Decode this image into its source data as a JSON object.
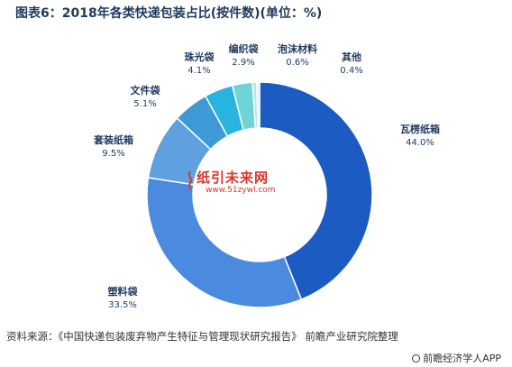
{
  "title": "图表6：2018年各类快递包装占比(按件数)(单位：%)",
  "chart_data": {
    "type": "pie",
    "donut": true,
    "title": "图表6：2018年各类快递包装占比(按件数)(单位：%)",
    "slices": [
      {
        "label": "瓦楞纸箱",
        "value": 44.0,
        "display": "44.0%",
        "color": "#1b5bc2"
      },
      {
        "label": "塑料袋",
        "value": 33.5,
        "display": "33.5%",
        "color": "#4a8bdf"
      },
      {
        "label": "套装纸箱",
        "value": 9.5,
        "display": "9.5%",
        "color": "#5fa0de"
      },
      {
        "label": "文件袋",
        "value": 5.1,
        "display": "5.1%",
        "color": "#3d9ad6"
      },
      {
        "label": "珠光袋",
        "value": 4.1,
        "display": "4.1%",
        "color": "#28b3e0"
      },
      {
        "label": "编织袋",
        "value": 2.9,
        "display": "2.9%",
        "color": "#6fd4d6"
      },
      {
        "label": "泡沫材料",
        "value": 0.6,
        "display": "0.6%",
        "color": "#b7e6ea"
      },
      {
        "label": "其他",
        "value": 0.4,
        "display": "0.4%",
        "color": "#dfeef2"
      }
    ]
  },
  "watermark": {
    "brand": "纸引未来网",
    "url": "www.51zywl.com"
  },
  "source": "资料来源：《中国快递包装废弃物产生特征与管理现状研究报告》 前瞻产业研究院整理",
  "app_tag": "前瞻经济学人APP"
}
